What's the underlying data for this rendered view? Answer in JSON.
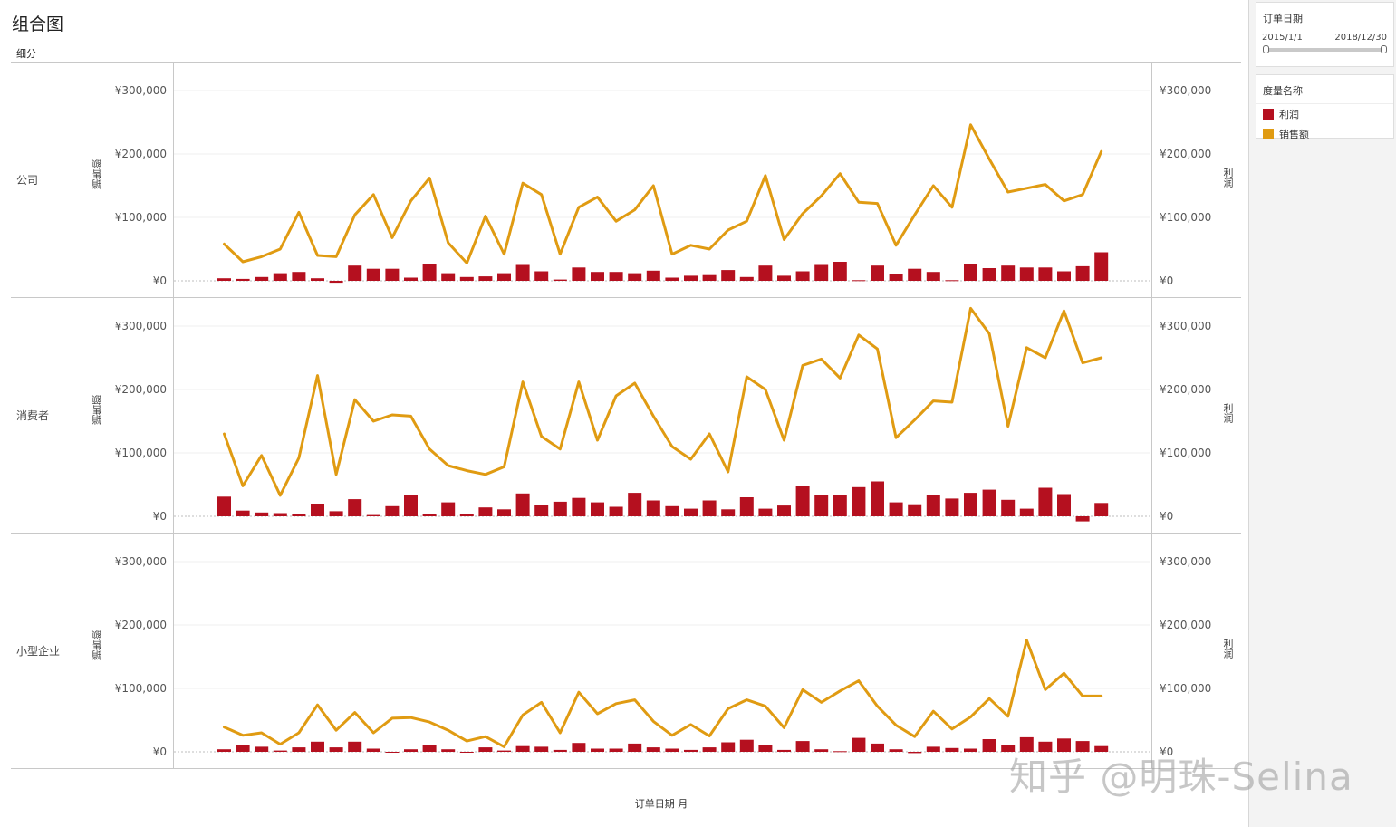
{
  "title": "组合图",
  "segment_header": "细分",
  "x_axis_title": "订单日期 月",
  "left_axis_title": "销售额",
  "right_axis_title": "利润",
  "y_ticks": [
    "¥300,000",
    "¥200,000",
    "¥100,000",
    "¥0"
  ],
  "filter": {
    "title": "订单日期",
    "start": "2015/1/1",
    "end": "2018/12/30",
    "range_fraction": [
      0,
      1
    ]
  },
  "legend": {
    "title": "度量名称",
    "items": [
      {
        "label": "利润",
        "color": "#b5101f"
      },
      {
        "label": "销售额",
        "color": "#e09b12"
      }
    ]
  },
  "watermark": "知乎 @明珠-Selina",
  "chart_data": {
    "type": "bar",
    "combo": "bar + line, dual axis",
    "x_count": 48,
    "ylim_sales": [
      0,
      330000
    ],
    "ylim_profit": [
      0,
      330000
    ],
    "grid": true,
    "legend_position": "right",
    "series_colors": {
      "profit": "#b5101f",
      "sales": "#e09b12"
    },
    "panels": [
      {
        "segment": "公司",
        "sales": [
          58000,
          30000,
          38000,
          50000,
          108000,
          40000,
          38000,
          104000,
          136000,
          68000,
          126000,
          162000,
          60000,
          28000,
          102000,
          42000,
          154000,
          136000,
          42000,
          116000,
          132000,
          94000,
          112000,
          150000,
          42000,
          56000,
          50000,
          80000,
          94000,
          166000,
          65000,
          106000,
          134000,
          169000,
          124000,
          122000,
          56000,
          104000,
          150000,
          116000,
          246000,
          192000,
          140000,
          146000,
          152000,
          126000,
          136000,
          204000
        ],
        "profit": [
          4000,
          3000,
          6000,
          12000,
          14000,
          4000,
          -3000,
          24000,
          19000,
          19000,
          5000,
          27000,
          12000,
          6000,
          7000,
          12000,
          25000,
          15000,
          2000,
          21000,
          14000,
          14000,
          12000,
          16000,
          5000,
          8000,
          9000,
          17000,
          6000,
          24000,
          8000,
          15000,
          25000,
          30000,
          1000,
          24000,
          10000,
          19000,
          14000,
          1000,
          27000,
          20000,
          24000,
          21000,
          21000,
          15000,
          23000,
          45000
        ]
      },
      {
        "segment": "消费者",
        "sales": [
          130000,
          48000,
          96000,
          33000,
          92000,
          222000,
          66000,
          184000,
          150000,
          160000,
          158000,
          106000,
          80000,
          72000,
          66000,
          78000,
          212000,
          126000,
          106000,
          212000,
          120000,
          190000,
          210000,
          158000,
          110000,
          90000,
          130000,
          70000,
          220000,
          200000,
          120000,
          238000,
          248000,
          218000,
          286000,
          264000,
          124000,
          152000,
          182000,
          180000,
          328000,
          288000,
          142000,
          266000,
          250000,
          324000,
          242000,
          250000
        ],
        "profit": [
          31000,
          9000,
          6000,
          5000,
          4000,
          20000,
          8000,
          27000,
          2000,
          16000,
          34000,
          4000,
          22000,
          3000,
          14000,
          11000,
          36000,
          18000,
          23000,
          29000,
          22000,
          15000,
          37000,
          25000,
          16000,
          12000,
          25000,
          11000,
          30000,
          12000,
          17000,
          48000,
          33000,
          34000,
          46000,
          55000,
          22000,
          19000,
          34000,
          28000,
          37000,
          42000,
          26000,
          12000,
          45000,
          35000,
          -8000,
          21000
        ]
      },
      {
        "segment": "小型企业",
        "sales": [
          39000,
          26000,
          30000,
          12000,
          30000,
          74000,
          34000,
          62000,
          30000,
          53000,
          54000,
          47000,
          34000,
          17000,
          24000,
          8000,
          58000,
          78000,
          30000,
          94000,
          60000,
          76000,
          82000,
          48000,
          26000,
          43000,
          25000,
          68000,
          82000,
          72000,
          38000,
          98000,
          78000,
          96000,
          112000,
          72000,
          42000,
          24000,
          64000,
          36000,
          55000,
          84000,
          56000,
          176000,
          98000,
          124000,
          88000,
          88000
        ],
        "profit": [
          4000,
          10000,
          8000,
          2000,
          7000,
          16000,
          7000,
          16000,
          5000,
          -1000,
          4000,
          11000,
          4000,
          0,
          7000,
          2000,
          9000,
          8000,
          3000,
          14000,
          5000,
          5000,
          13000,
          7000,
          5000,
          3000,
          7000,
          15000,
          19000,
          11000,
          3000,
          17000,
          4000,
          1000,
          22000,
          13000,
          4000,
          -2000,
          8000,
          6000,
          5000,
          20000,
          10000,
          23000,
          16000,
          21000,
          17000,
          9000
        ]
      }
    ]
  }
}
